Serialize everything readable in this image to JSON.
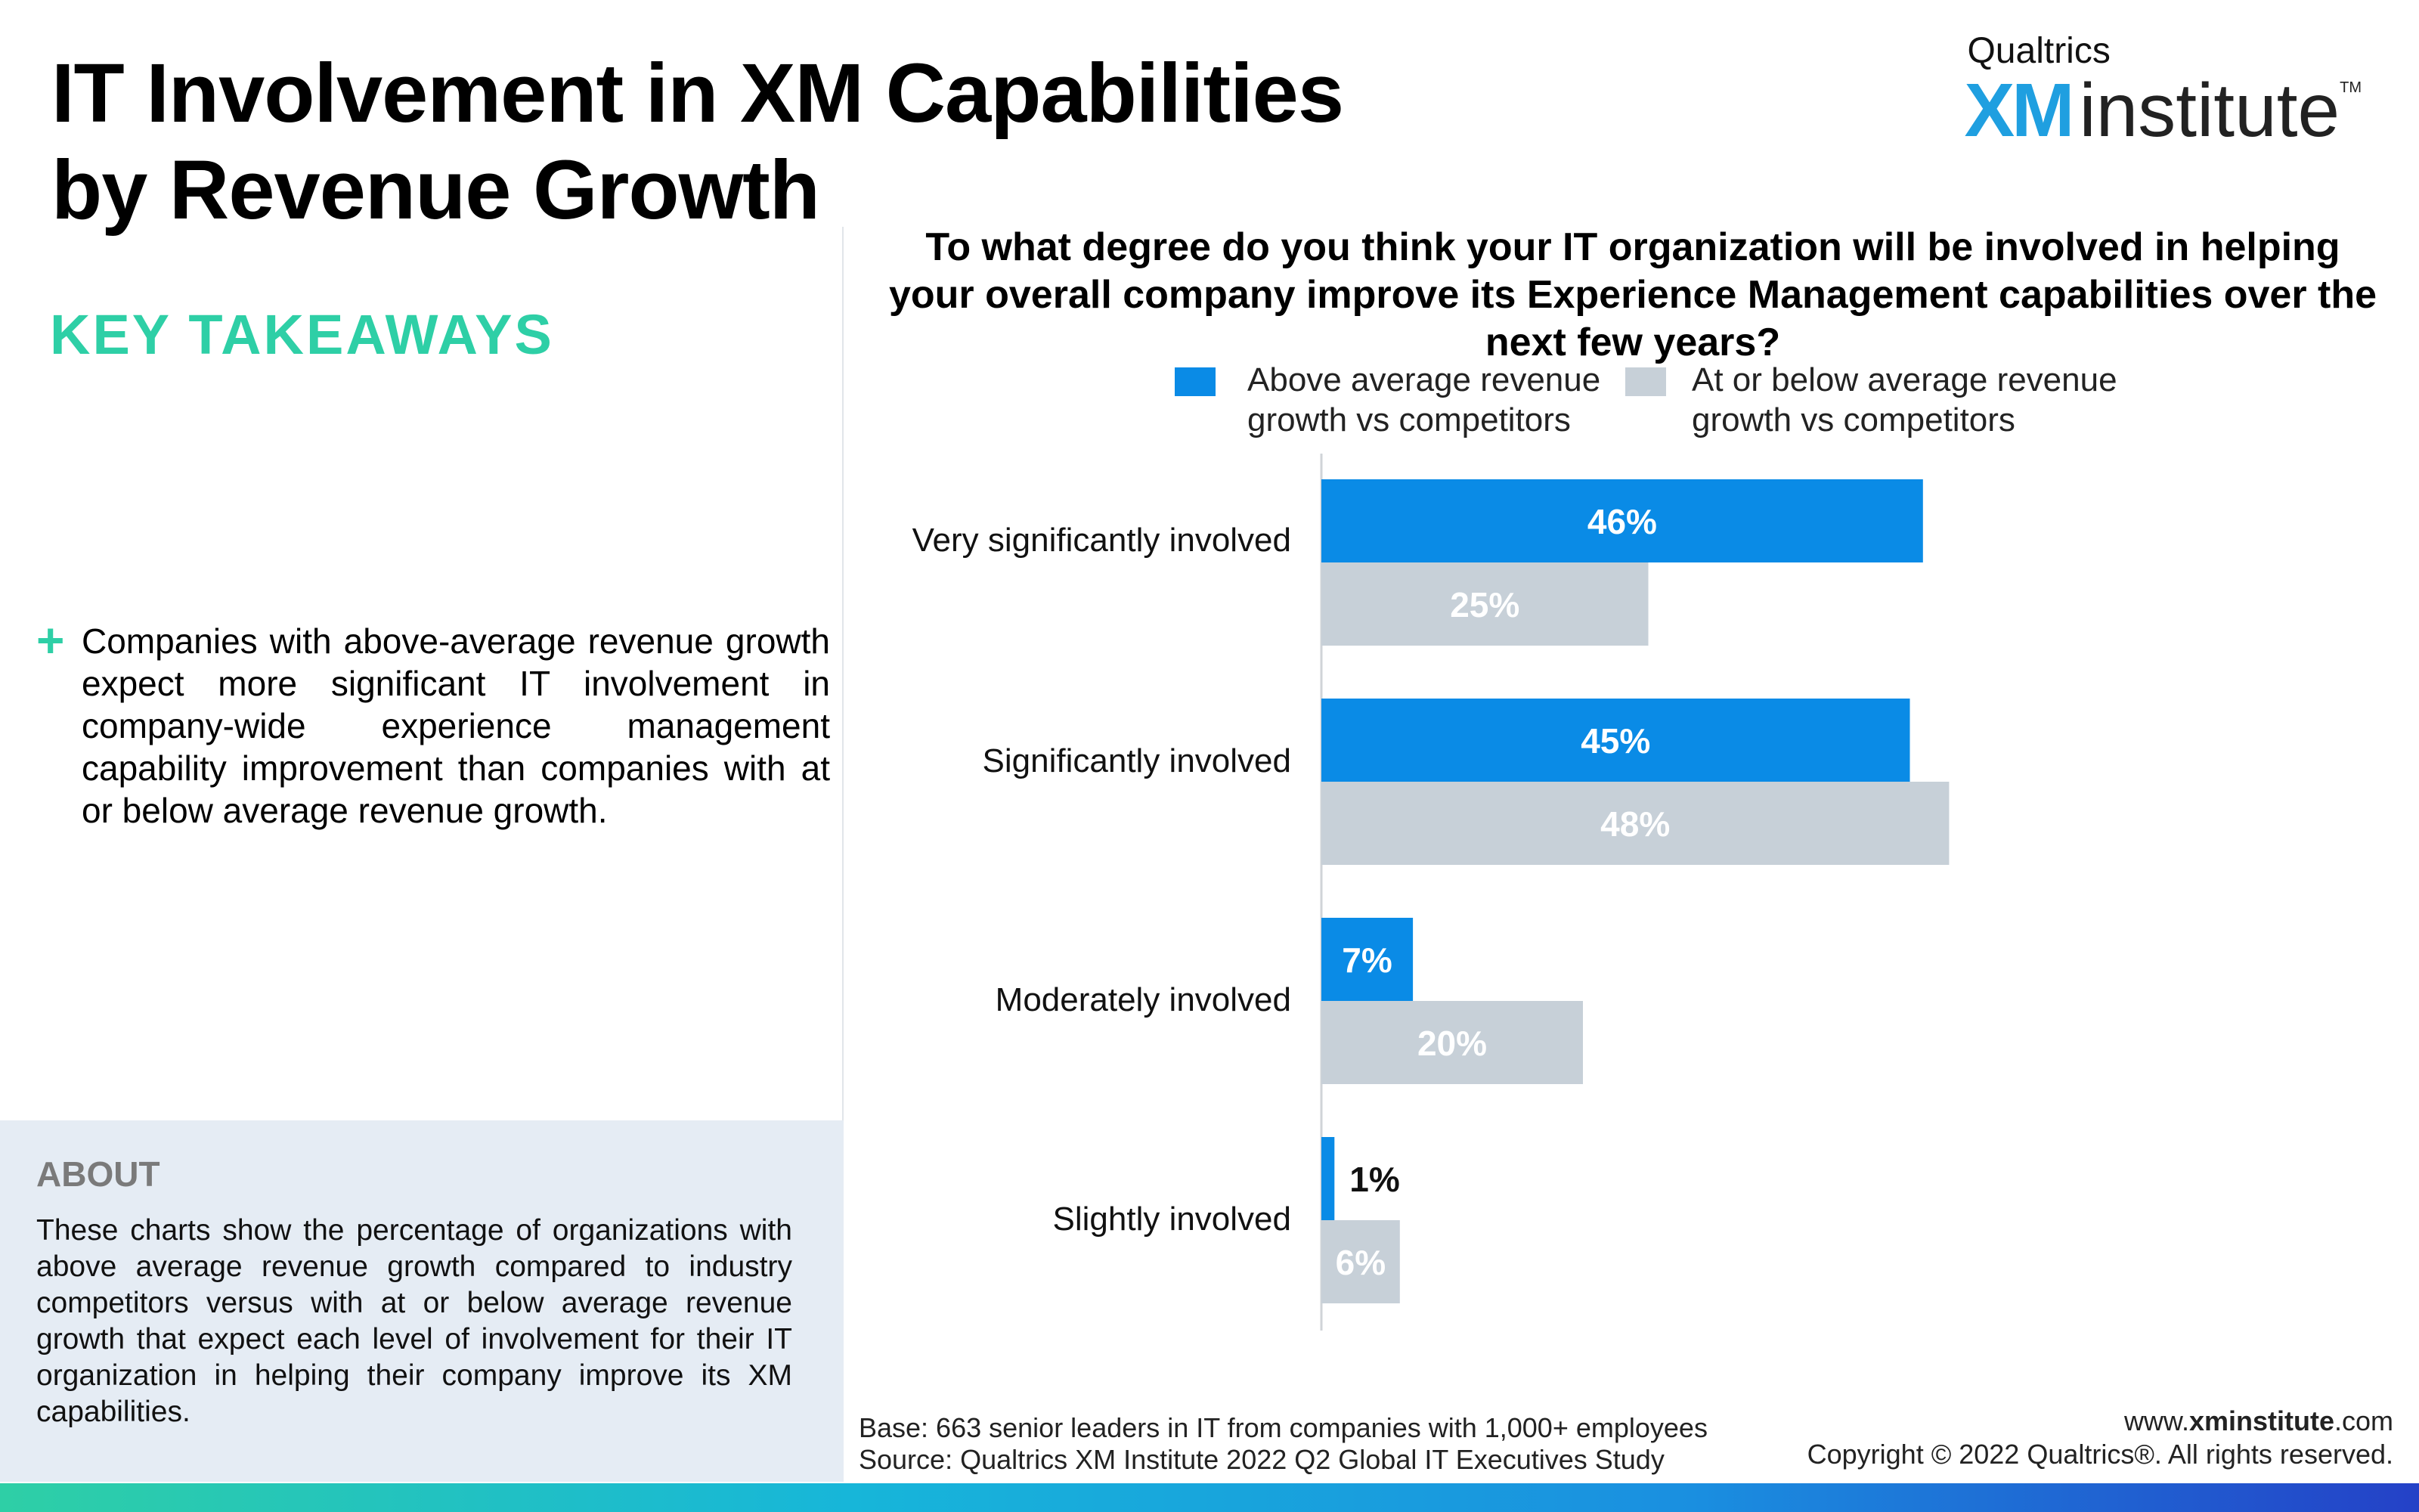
{
  "title": "IT Involvement in XM Capabilities by Revenue Growth",
  "logo": {
    "brand": "Qualtrics",
    "xm": "XM",
    "word": "institute",
    "tm": "TM"
  },
  "takeaways": {
    "heading": "KEY TAKEAWAYS",
    "items": [
      {
        "icon": "plus-icon",
        "text": "Companies with above-average revenue growth expect more significant IT involvement in company-wide experience management capability improvement than companies with at or below average revenue growth."
      }
    ]
  },
  "about": {
    "heading": "ABOUT",
    "text": "These charts show the percentage of organizations with above average revenue growth compared to industry competitors versus with at or below average revenue growth that expect each level of involvement for their IT organization in helping their company improve its XM capabilities."
  },
  "chart_data": {
    "type": "bar",
    "orientation": "horizontal",
    "title": "To what degree do you think your IT organization will be involved in helping your overall company improve its Experience Management capabilities over the next few years?",
    "categories": [
      "Very significantly involved",
      "Significantly involved",
      "Moderately involved",
      "Slightly involved"
    ],
    "series": [
      {
        "name": "Above average revenue growth vs competitors",
        "values": [
          46,
          45,
          7,
          1
        ],
        "labels": [
          "46%",
          "45%",
          "7%",
          "1%"
        ],
        "color": "#0a8be6"
      },
      {
        "name": "At or below average revenue growth vs competitors",
        "values": [
          25,
          48,
          20,
          6
        ],
        "labels": [
          "25%",
          "48%",
          "20%",
          "6%"
        ],
        "color": "#c7d0d8"
      }
    ],
    "xlim": [
      0,
      100
    ],
    "grid": false,
    "legend": "top"
  },
  "footer": {
    "base": "Base: 663 senior leaders in IT from companies with 1,000+ employees",
    "source": "Source: Qualtrics XM Institute 2022 Q2 Global IT Executives Study",
    "website_prefix": "www.",
    "website_bold": "xminstitute",
    "website_suffix": ".com",
    "copyright": "Copyright © 2022 Qualtrics®. All rights reserved."
  },
  "colors": {
    "accent": "#2ecfa6",
    "blue": "#0a8be6",
    "gray": "#c7d0d8",
    "about_bg": "#e5ecf4"
  }
}
